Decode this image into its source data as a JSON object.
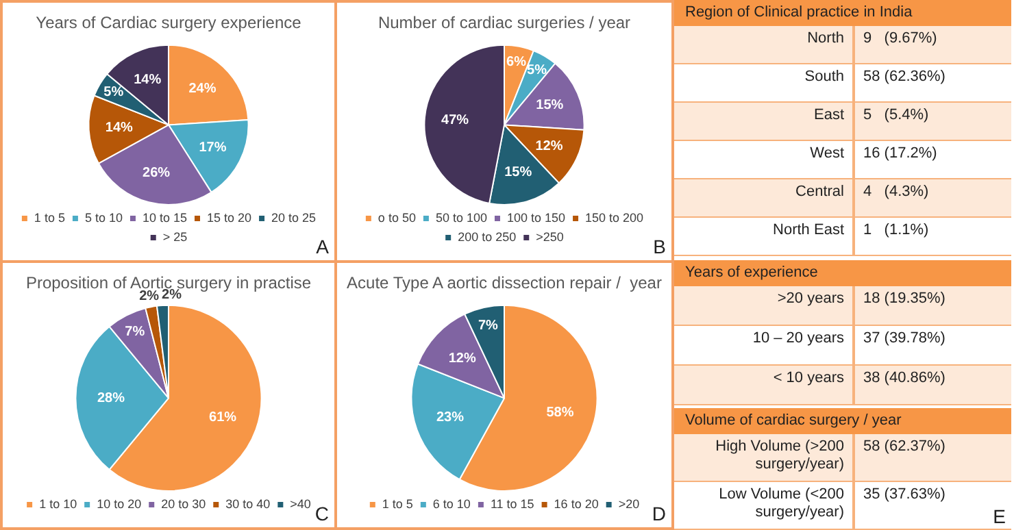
{
  "chart_data": [
    {
      "type": "pie",
      "title": "Years of Cardiac surgery experience",
      "categories": [
        "1 to 5",
        "5 to 10",
        "10 to 15",
        "15 to 20",
        "20 to 25",
        "> 25"
      ],
      "values": [
        24,
        17,
        26,
        14,
        5,
        14
      ],
      "value_labels": [
        "24%",
        "17%",
        "26%",
        "14%",
        "5%",
        "14%"
      ],
      "colors": [
        "#f79646",
        "#4bacc6",
        "#8064a2",
        "#b65708",
        "#215f73",
        "#433358"
      ],
      "legend": "bottom",
      "annotations": [
        "A"
      ]
    },
    {
      "type": "pie",
      "title": "Number of cardiac surgeries / year",
      "categories": [
        "o to 50",
        "50 to 100",
        "100 to 150",
        "150 to 200",
        "200 to 250",
        ">250"
      ],
      "values": [
        6,
        5,
        15,
        12,
        15,
        47
      ],
      "value_labels": [
        "6%",
        "5%",
        "15%",
        "12%",
        "15%",
        "47%"
      ],
      "colors": [
        "#f79646",
        "#4bacc6",
        "#8064a2",
        "#b65708",
        "#215f73",
        "#433358"
      ],
      "legend": "bottom",
      "annotations": [
        "B"
      ]
    },
    {
      "type": "pie",
      "title": "Proposition of Aortic surgery in practise",
      "categories": [
        "1 to 10",
        "10 to 20",
        "20 to 30",
        "30 to 40",
        ">40"
      ],
      "values": [
        61,
        28,
        7,
        2,
        2
      ],
      "value_labels": [
        "61%",
        "28%",
        "7%",
        "2%",
        "2%"
      ],
      "colors": [
        "#f79646",
        "#4bacc6",
        "#8064a2",
        "#b65708",
        "#215f73"
      ],
      "legend": "bottom",
      "annotations": [
        "C"
      ]
    },
    {
      "type": "pie",
      "title": "Acute Type A aortic dissection repair /  year",
      "categories": [
        "1 to 5",
        "6 to 10",
        "11 to 15",
        "16 to 20",
        ">20"
      ],
      "values": [
        58,
        23,
        12,
        0,
        7
      ],
      "value_labels": [
        "58%",
        "23%",
        "12%",
        null,
        "7%"
      ],
      "colors": [
        "#f79646",
        "#4bacc6",
        "#8064a2",
        "#b65708",
        "#215f73"
      ],
      "legend": "bottom",
      "annotations": [
        "D"
      ]
    },
    {
      "type": "other",
      "title": "Region of Clinical practice in India",
      "categories": [
        "North",
        "South",
        "East",
        "West",
        "Central",
        "North East"
      ],
      "value_labels": [
        "9   (9.67%)",
        "58 (62.36%)",
        "5   (5.4%)",
        "16 (17.2%)",
        "4   (4.3%)",
        "1   (1.1%)"
      ]
    },
    {
      "type": "other",
      "title": "Years of experience",
      "categories": [
        ">20 years",
        "10 – 20 years",
        "< 10 years"
      ],
      "value_labels": [
        "18 (19.35%)",
        "37 (39.78%)",
        "38 (40.86%)"
      ]
    },
    {
      "type": "other",
      "title": "Volume of cardiac surgery / year",
      "categories": [
        "High Volume (>200 surgery/year)",
        "Low Volume (<200 surgery/year)"
      ],
      "value_labels": [
        "58 (62.37%)",
        "35 (37.63%)"
      ],
      "annotations": [
        "E"
      ]
    }
  ]
}
